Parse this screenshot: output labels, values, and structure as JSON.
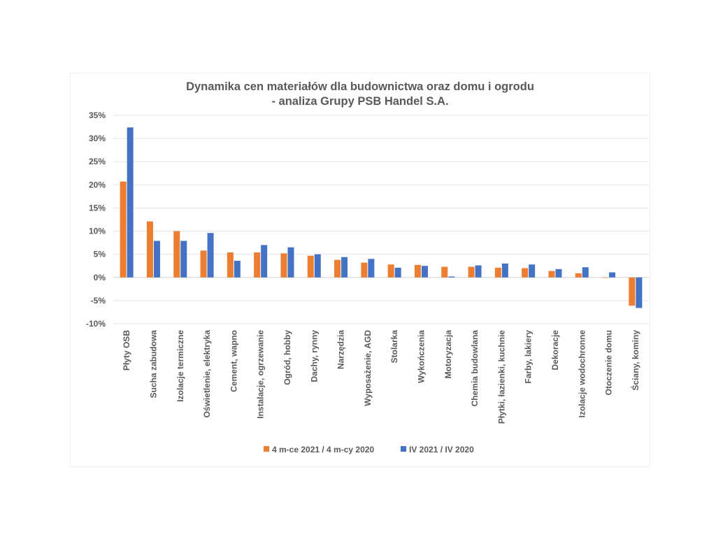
{
  "chart_data": {
    "type": "bar",
    "title_lines": [
      "Dynamika cen materiałów dla budownictwa oraz domu i ogrodu",
      "- analiza Grupy PSB Handel S.A."
    ],
    "categories": [
      "Płyty OSB",
      "Sucha zabudowa",
      "Izolacje termiczne",
      "Oświetlenie, elektryka",
      "Cement, wapno",
      "Instalacje, ogrzewanie",
      "Ogród, hobby",
      "Dachy, rynny",
      "Narzędzia",
      "Wyposażenie, AGD",
      "Stolarka",
      "Wykończenia",
      "Motoryzacja",
      "Chemia budowlana",
      "Płytki, łazienki, kuchnie",
      "Farby, lakiery",
      "Dekoracje",
      "Izolacje wodochronne",
      "Otoczenie domu",
      "Ściany, kominy"
    ],
    "series": [
      {
        "name": "4 m-ce 2021 / 4 m-cy 2020",
        "color": "#ED7D31",
        "values": [
          20.7,
          12.1,
          10.0,
          5.8,
          5.4,
          5.4,
          5.2,
          4.7,
          3.8,
          3.2,
          2.8,
          2.7,
          2.3,
          2.3,
          2.1,
          2.0,
          1.4,
          0.9,
          0.0,
          -6.1
        ]
      },
      {
        "name": "IV 2021 / IV 2020",
        "color": "#4472C4",
        "values": [
          32.4,
          7.9,
          7.9,
          9.6,
          3.6,
          7.0,
          6.5,
          5.0,
          4.4,
          4.0,
          2.1,
          2.5,
          0.2,
          2.6,
          3.0,
          2.8,
          1.8,
          2.2,
          1.1,
          -6.6
        ]
      }
    ],
    "ylim": [
      -10,
      35
    ],
    "yticks": [
      -10,
      -5,
      0,
      5,
      10,
      15,
      20,
      25,
      30,
      35
    ],
    "ytick_labels": [
      "-10%",
      "-5%",
      "0%",
      "5%",
      "10%",
      "15%",
      "20%",
      "25%",
      "30%",
      "35%"
    ],
    "grid": true,
    "legend_position": "bottom"
  }
}
